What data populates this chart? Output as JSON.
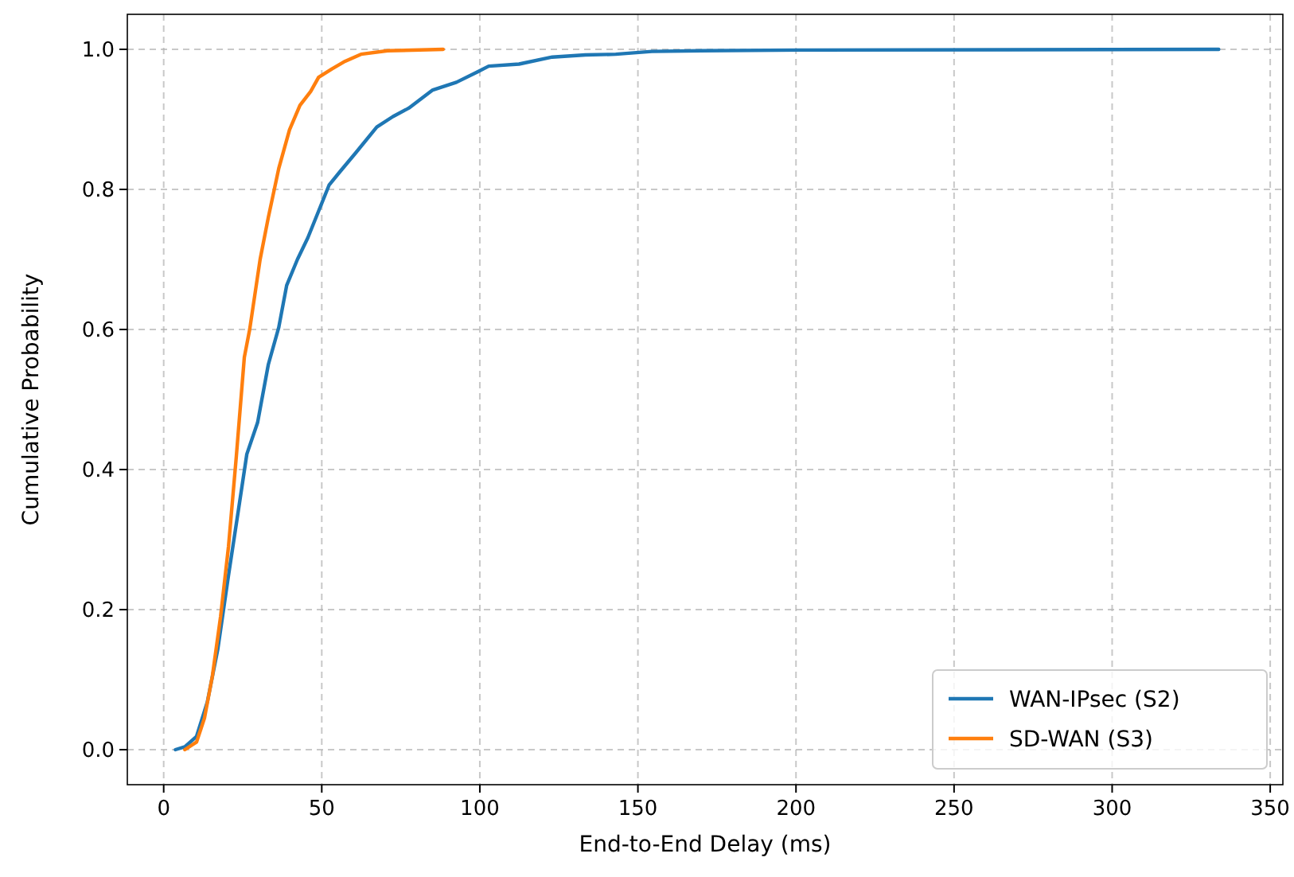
{
  "chart_data": {
    "type": "line",
    "xlabel": "End-to-End Delay (ms)",
    "ylabel": "Cumulative Probability",
    "xlim": [
      -11.5,
      354
    ],
    "ylim": [
      -0.05,
      1.05
    ],
    "xticks": [
      0,
      50,
      100,
      150,
      200,
      250,
      300,
      350
    ],
    "yticks": [
      {
        "value": 0,
        "label": "0.0"
      },
      {
        "value": 0.2,
        "label": "0.2"
      },
      {
        "value": 0.4,
        "label": "0.4"
      },
      {
        "value": 0.6,
        "label": "0.6"
      },
      {
        "value": 0.8,
        "label": "0.8"
      },
      {
        "value": 1,
        "label": "1.0"
      }
    ],
    "grid": true,
    "legend": "bottom right",
    "line_style": "solid",
    "marker": "none",
    "series": [
      {
        "name": "WAN-IPsec (S2)",
        "color": "#1f77b4",
        "x": [
          3.7,
          6.7,
          10.4,
          13.8,
          17.1,
          20.5,
          23.8,
          26.3,
          29.7,
          33.1,
          36.4,
          38.9,
          42.3,
          45.6,
          49.0,
          52.3,
          55.7,
          60.7,
          67.4,
          72.5,
          77.5,
          85.1,
          92.6,
          99.3,
          102.8,
          112.4,
          122.9,
          133.4,
          143,
          154.4,
          170,
          201.6,
          333.7
        ],
        "values": [
          0,
          0.004,
          0.019,
          0.068,
          0.143,
          0.249,
          0.347,
          0.422,
          0.467,
          0.55,
          0.603,
          0.663,
          0.7,
          0.731,
          0.769,
          0.806,
          0.825,
          0.852,
          0.889,
          0.904,
          0.916,
          0.942,
          0.953,
          0.968,
          0.976,
          0.979,
          0.989,
          0.992,
          0.993,
          0.997,
          0.998,
          0.999,
          1.0
        ]
      },
      {
        "name": "SD-WAN (S3)",
        "color": "#ff7f0e",
        "x": [
          6.7,
          10.4,
          12.9,
          15.4,
          18.0,
          20.5,
          23.0,
          25.5,
          27.2,
          30.5,
          33.1,
          36.4,
          39.8,
          43.1,
          46.5,
          49.0,
          53.2,
          57.4,
          62.4,
          70.8,
          88.4
        ],
        "values": [
          0,
          0.011,
          0.045,
          0.105,
          0.19,
          0.29,
          0.42,
          0.56,
          0.6,
          0.7,
          0.76,
          0.83,
          0.885,
          0.92,
          0.94,
          0.96,
          0.972,
          0.983,
          0.993,
          0.998,
          1.0
        ]
      }
    ]
  }
}
